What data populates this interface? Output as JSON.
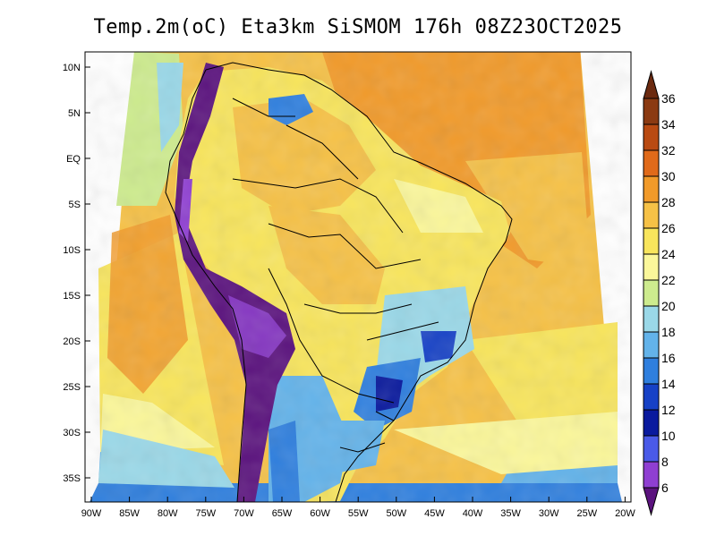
{
  "title": "Temp.2m(oC) Eta3km SiSMOM 176h 08Z23OCT2025",
  "map": {
    "lat_labels": [
      "10N",
      "5N",
      "EQ",
      "5S",
      "10S",
      "15S",
      "20S",
      "25S",
      "30S",
      "35S"
    ],
    "lon_labels": [
      "90W",
      "85W",
      "80W",
      "75W",
      "70W",
      "65W",
      "60W",
      "55W",
      "50W",
      "45W",
      "40W",
      "35W",
      "30W",
      "25W",
      "20W"
    ]
  },
  "colorbar": {
    "labels": [
      "36",
      "34",
      "32",
      "30",
      "28",
      "26",
      "24",
      "22",
      "20",
      "18",
      "16",
      "14",
      "12",
      "10",
      "8",
      "6"
    ],
    "colors": [
      "#6b2a10",
      "#8b3a12",
      "#b94a12",
      "#e06a1a",
      "#f19a2a",
      "#f6c146",
      "#f8e55c",
      "#fbf79a",
      "#cdeb8e",
      "#9ad8e8",
      "#63b3ea",
      "#2f7fde",
      "#1641c6",
      "#0a1a9e",
      "#4a5ae8",
      "#8f3fd2",
      "#5b137e"
    ]
  }
}
